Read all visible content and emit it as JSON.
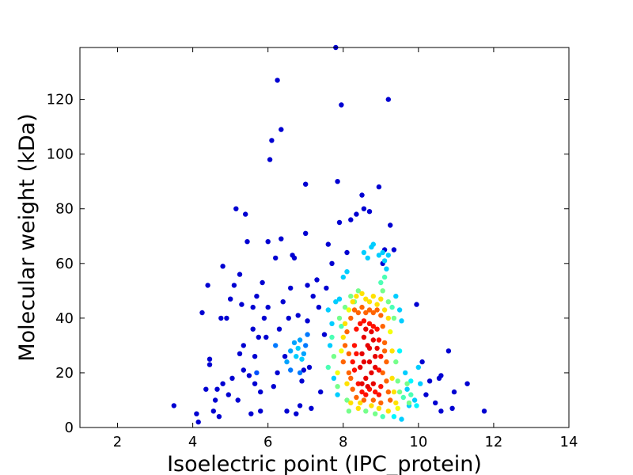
{
  "chart_data": {
    "type": "scatter",
    "title": "",
    "xlabel": "Isoelectric point (IPC_protein)",
    "ylabel": "Molecular weight (kDa)",
    "xlim": [
      1,
      14
    ],
    "ylim": [
      0,
      139
    ],
    "xticks": [
      "2",
      "4",
      "6",
      "8",
      "10",
      "12",
      "14"
    ],
    "yticks": [
      "0",
      "20",
      "40",
      "60",
      "80",
      "100",
      "120"
    ],
    "grid": false,
    "legend": "none",
    "colormap": "jet (point density)",
    "colors": {
      "low_density": "#0000aa",
      "high_density": "#990000"
    },
    "points": [
      [
        3.5,
        8,
        0
      ],
      [
        4.1,
        5,
        0
      ],
      [
        4.15,
        2,
        0
      ],
      [
        4.25,
        42,
        0
      ],
      [
        4.35,
        14,
        0
      ],
      [
        4.4,
        52,
        0
      ],
      [
        4.45,
        25,
        0
      ],
      [
        4.45,
        23,
        0
      ],
      [
        4.55,
        6,
        0
      ],
      [
        4.6,
        10,
        0
      ],
      [
        4.65,
        14,
        0
      ],
      [
        4.7,
        4,
        0
      ],
      [
        4.75,
        40,
        0
      ],
      [
        4.8,
        16,
        0
      ],
      [
        4.8,
        59,
        0
      ],
      [
        4.9,
        40,
        0
      ],
      [
        4.95,
        12,
        0
      ],
      [
        5.0,
        47,
        0
      ],
      [
        5.05,
        18,
        0
      ],
      [
        5.1,
        52,
        0
      ],
      [
        5.15,
        80,
        0
      ],
      [
        5.2,
        10,
        0
      ],
      [
        5.25,
        27,
        0
      ],
      [
        5.25,
        56,
        0
      ],
      [
        5.3,
        45,
        0
      ],
      [
        5.35,
        30,
        0
      ],
      [
        5.35,
        21,
        0
      ],
      [
        5.4,
        78,
        0
      ],
      [
        5.45,
        68,
        0
      ],
      [
        5.5,
        19,
        0
      ],
      [
        5.55,
        5,
        0
      ],
      [
        5.6,
        36,
        0
      ],
      [
        5.6,
        44,
        0
      ],
      [
        5.65,
        16,
        0
      ],
      [
        5.65,
        26,
        0
      ],
      [
        5.7,
        48,
        0
      ],
      [
        5.75,
        33,
        0
      ],
      [
        5.8,
        13,
        0
      ],
      [
        5.8,
        6,
        0
      ],
      [
        5.85,
        53,
        0
      ],
      [
        5.9,
        40,
        0
      ],
      [
        5.95,
        33,
        0
      ],
      [
        6.0,
        68,
        0
      ],
      [
        6.0,
        44,
        0
      ],
      [
        6.05,
        98,
        0
      ],
      [
        6.1,
        105,
        0
      ],
      [
        6.15,
        15,
        0
      ],
      [
        6.2,
        62,
        0
      ],
      [
        6.25,
        127,
        0
      ],
      [
        6.25,
        20,
        0
      ],
      [
        6.3,
        36,
        0
      ],
      [
        6.35,
        109,
        0
      ],
      [
        6.35,
        69,
        0
      ],
      [
        6.4,
        46,
        0
      ],
      [
        6.45,
        26,
        0
      ],
      [
        6.5,
        6,
        0
      ],
      [
        6.55,
        40,
        0
      ],
      [
        6.6,
        51,
        0
      ],
      [
        6.65,
        63,
        0
      ],
      [
        6.7,
        62,
        0
      ],
      [
        6.75,
        5,
        0
      ],
      [
        6.8,
        41,
        0
      ],
      [
        6.85,
        8,
        0
      ],
      [
        6.9,
        17,
        0
      ],
      [
        6.95,
        21,
        0
      ],
      [
        7.0,
        89,
        0
      ],
      [
        7.0,
        71,
        0
      ],
      [
        7.05,
        52,
        0
      ],
      [
        7.05,
        39,
        0
      ],
      [
        7.1,
        22,
        0
      ],
      [
        7.15,
        7,
        0
      ],
      [
        7.2,
        48,
        0
      ],
      [
        7.3,
        54,
        0
      ],
      [
        7.35,
        44,
        0
      ],
      [
        7.4,
        13,
        0
      ],
      [
        7.5,
        34,
        0
      ],
      [
        7.55,
        51,
        0
      ],
      [
        7.6,
        67,
        0
      ],
      [
        7.7,
        60,
        0
      ],
      [
        7.8,
        139,
        0
      ],
      [
        7.85,
        90,
        0
      ],
      [
        7.9,
        75,
        0
      ],
      [
        7.95,
        118,
        0
      ],
      [
        8.1,
        64,
        0
      ],
      [
        8.2,
        76,
        0
      ],
      [
        8.35,
        78,
        0
      ],
      [
        8.5,
        85,
        0
      ],
      [
        8.55,
        80,
        0
      ],
      [
        8.7,
        79,
        0
      ],
      [
        8.95,
        88,
        0
      ],
      [
        9.05,
        60,
        0
      ],
      [
        9.1,
        65,
        0
      ],
      [
        9.2,
        120,
        0
      ],
      [
        9.25,
        74,
        0
      ],
      [
        9.35,
        65,
        0
      ],
      [
        9.95,
        45,
        0
      ],
      [
        10.1,
        24,
        0
      ],
      [
        10.2,
        12,
        0
      ],
      [
        10.3,
        17,
        0
      ],
      [
        10.45,
        9,
        0
      ],
      [
        10.55,
        18,
        0
      ],
      [
        10.6,
        19,
        0
      ],
      [
        10.6,
        6,
        0
      ],
      [
        10.8,
        28,
        0
      ],
      [
        10.9,
        7,
        0
      ],
      [
        10.95,
        13,
        0
      ],
      [
        11.3,
        16,
        0
      ],
      [
        11.75,
        6,
        0
      ],
      [
        5.7,
        20,
        0.15
      ],
      [
        6.2,
        30,
        0.2
      ],
      [
        6.5,
        24,
        0.25
      ],
      [
        6.6,
        28,
        0.25
      ],
      [
        6.7,
        31,
        0.25
      ],
      [
        6.75,
        26,
        0.3
      ],
      [
        6.8,
        29,
        0.3
      ],
      [
        6.85,
        32,
        0.25
      ],
      [
        6.9,
        25,
        0.3
      ],
      [
        6.95,
        27,
        0.25
      ],
      [
        7.0,
        30,
        0.2
      ],
      [
        6.6,
        21,
        0.2
      ],
      [
        6.85,
        20,
        0.2
      ],
      [
        7.05,
        34,
        0.2
      ],
      [
        7.6,
        43,
        0.3
      ],
      [
        7.65,
        30,
        0.3
      ],
      [
        7.7,
        38,
        0.3
      ],
      [
        7.75,
        18,
        0.3
      ],
      [
        7.8,
        46,
        0.3
      ],
      [
        7.85,
        12,
        0.3
      ],
      [
        7.9,
        47,
        0.3
      ],
      [
        8.0,
        55,
        0.3
      ],
      [
        8.1,
        57,
        0.3
      ],
      [
        8.55,
        64,
        0.3
      ],
      [
        8.65,
        62,
        0.3
      ],
      [
        8.75,
        66,
        0.3
      ],
      [
        8.8,
        67,
        0.3
      ],
      [
        8.95,
        63,
        0.3
      ],
      [
        9.05,
        64,
        0.3
      ],
      [
        9.1,
        61,
        0.3
      ],
      [
        9.15,
        58,
        0.3
      ],
      [
        9.2,
        63,
        0.3
      ],
      [
        9.4,
        48,
        0.3
      ],
      [
        9.5,
        43,
        0.3
      ],
      [
        9.55,
        39,
        0.3
      ],
      [
        9.5,
        28,
        0.35
      ],
      [
        9.65,
        20,
        0.3
      ],
      [
        9.7,
        14,
        0.3
      ],
      [
        9.75,
        8,
        0.3
      ],
      [
        9.8,
        17,
        0.35
      ],
      [
        9.9,
        10,
        0.3
      ],
      [
        9.95,
        8,
        0.35
      ],
      [
        10.0,
        22,
        0.3
      ],
      [
        10.05,
        16,
        0.3
      ],
      [
        9.55,
        3,
        0.3
      ],
      [
        9.35,
        4,
        0.35
      ],
      [
        7.6,
        22,
        0.45
      ],
      [
        7.7,
        33,
        0.45
      ],
      [
        7.75,
        26,
        0.5
      ],
      [
        7.85,
        15,
        0.5
      ],
      [
        7.9,
        40,
        0.5
      ],
      [
        7.95,
        37,
        0.45
      ],
      [
        8.05,
        44,
        0.5
      ],
      [
        8.1,
        10,
        0.5
      ],
      [
        8.15,
        6,
        0.5
      ],
      [
        8.2,
        48,
        0.5
      ],
      [
        8.3,
        46,
        0.5
      ],
      [
        8.4,
        50,
        0.5
      ],
      [
        9.0,
        53,
        0.45
      ],
      [
        9.05,
        50,
        0.5
      ],
      [
        9.1,
        55,
        0.45
      ],
      [
        9.2,
        46,
        0.5
      ],
      [
        9.3,
        44,
        0.45
      ],
      [
        9.35,
        40,
        0.5
      ],
      [
        9.4,
        24,
        0.5
      ],
      [
        9.45,
        17,
        0.5
      ],
      [
        9.5,
        13,
        0.5
      ],
      [
        9.6,
        11,
        0.45
      ],
      [
        9.7,
        16,
        0.5
      ],
      [
        9.75,
        9,
        0.5
      ],
      [
        9.8,
        12,
        0.45
      ],
      [
        8.6,
        6,
        0.5
      ],
      [
        8.85,
        5,
        0.5
      ],
      [
        9.05,
        4,
        0.45
      ],
      [
        7.85,
        20,
        0.65
      ],
      [
        7.95,
        28,
        0.65
      ],
      [
        8.0,
        33,
        0.7
      ],
      [
        8.05,
        38,
        0.7
      ],
      [
        8.1,
        16,
        0.7
      ],
      [
        8.15,
        43,
        0.65
      ],
      [
        8.2,
        9,
        0.7
      ],
      [
        8.25,
        46,
        0.7
      ],
      [
        8.35,
        48,
        0.7
      ],
      [
        8.4,
        7,
        0.7
      ],
      [
        8.5,
        49,
        0.7
      ],
      [
        8.6,
        47,
        0.7
      ],
      [
        8.7,
        46,
        0.7
      ],
      [
        8.8,
        48,
        0.7
      ],
      [
        8.9,
        45,
        0.7
      ],
      [
        9.0,
        47,
        0.7
      ],
      [
        9.1,
        43,
        0.7
      ],
      [
        9.2,
        40,
        0.7
      ],
      [
        9.25,
        35,
        0.65
      ],
      [
        9.3,
        28,
        0.7
      ],
      [
        9.3,
        18,
        0.7
      ],
      [
        9.35,
        13,
        0.7
      ],
      [
        9.4,
        9,
        0.7
      ],
      [
        9.45,
        7,
        0.65
      ],
      [
        9.2,
        6,
        0.7
      ],
      [
        8.95,
        7,
        0.7
      ],
      [
        8.75,
        8,
        0.7
      ],
      [
        8.45,
        9,
        0.7
      ],
      [
        8.0,
        24,
        0.85
      ],
      [
        8.05,
        30,
        0.85
      ],
      [
        8.1,
        35,
        0.85
      ],
      [
        8.15,
        20,
        0.85
      ],
      [
        8.2,
        40,
        0.85
      ],
      [
        8.25,
        14,
        0.85
      ],
      [
        8.3,
        43,
        0.85
      ],
      [
        8.35,
        11,
        0.85
      ],
      [
        8.4,
        42,
        0.85
      ],
      [
        8.5,
        44,
        0.85
      ],
      [
        8.6,
        42,
        0.85
      ],
      [
        8.7,
        43,
        0.85
      ],
      [
        8.8,
        42,
        0.85
      ],
      [
        8.9,
        43,
        0.85
      ],
      [
        9.0,
        41,
        0.85
      ],
      [
        9.05,
        37,
        0.85
      ],
      [
        9.1,
        31,
        0.85
      ],
      [
        9.15,
        24,
        0.85
      ],
      [
        9.15,
        17,
        0.85
      ],
      [
        9.2,
        13,
        0.85
      ],
      [
        9.25,
        10,
        0.85
      ],
      [
        9.0,
        9,
        0.85
      ],
      [
        8.8,
        10,
        0.85
      ],
      [
        8.55,
        10,
        0.85
      ],
      [
        8.2,
        18,
        0.85
      ],
      [
        8.15,
        27,
        0.85
      ],
      [
        9.05,
        20,
        0.85
      ],
      [
        9.1,
        28,
        0.85
      ],
      [
        8.25,
        24,
        0.95
      ],
      [
        8.3,
        30,
        0.95
      ],
      [
        8.35,
        36,
        0.95
      ],
      [
        8.4,
        16,
        0.95
      ],
      [
        8.45,
        38,
        0.95
      ],
      [
        8.5,
        13,
        0.95
      ],
      [
        8.55,
        39,
        0.95
      ],
      [
        8.6,
        12,
        0.95
      ],
      [
        8.7,
        38,
        0.95
      ],
      [
        8.8,
        37,
        0.95
      ],
      [
        8.9,
        36,
        0.95
      ],
      [
        8.95,
        32,
        0.95
      ],
      [
        9.0,
        26,
        0.95
      ],
      [
        9.0,
        15,
        0.95
      ],
      [
        8.95,
        12,
        0.95
      ],
      [
        8.85,
        13,
        0.95
      ],
      [
        8.7,
        14,
        0.95
      ],
      [
        8.3,
        21,
        0.95
      ],
      [
        8.35,
        27,
        0.95
      ],
      [
        8.95,
        21,
        0.95
      ],
      [
        8.45,
        22,
        1.0
      ],
      [
        8.5,
        27,
        1.0
      ],
      [
        8.55,
        33,
        1.0
      ],
      [
        8.6,
        18,
        1.0
      ],
      [
        8.65,
        30,
        1.0
      ],
      [
        8.7,
        24,
        1.0
      ],
      [
        8.75,
        20,
        1.0
      ],
      [
        8.8,
        32,
        1.0
      ],
      [
        8.85,
        26,
        1.0
      ],
      [
        8.6,
        36,
        1.0
      ],
      [
        8.75,
        35,
        1.0
      ],
      [
        8.5,
        16,
        1.0
      ],
      [
        8.8,
        16,
        1.0
      ],
      [
        8.7,
        29,
        1.0
      ],
      [
        8.55,
        24,
        1.0
      ],
      [
        8.85,
        22,
        1.0
      ],
      [
        8.65,
        15,
        1.0
      ],
      [
        8.9,
        29,
        1.0
      ]
    ]
  }
}
